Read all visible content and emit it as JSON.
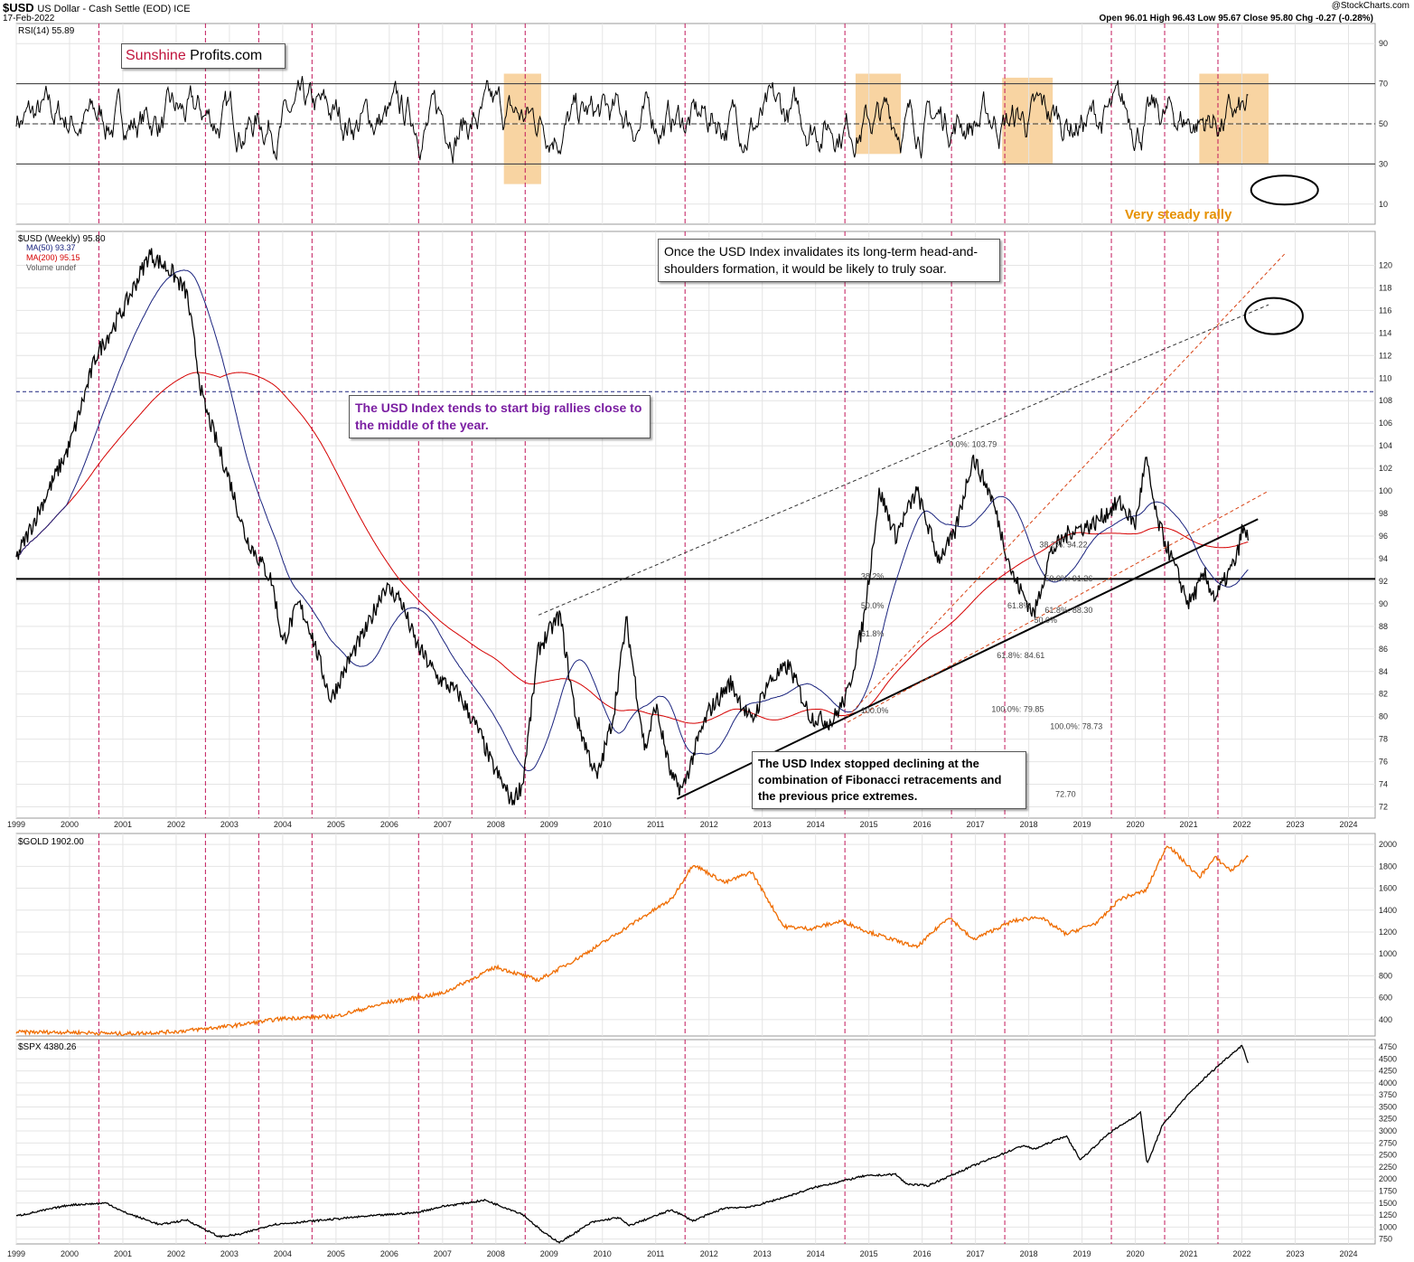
{
  "header": {
    "symbol": "$USD",
    "name": "US Dollar - Cash Settle (EOD) ICE",
    "date": "17-Feb-2022",
    "source": "@StockCharts.com",
    "ohlc": "Open 96.01  High 96.43  Low 95.67  Close 95.80  Chg -0.27 (-0.28%)"
  },
  "brand": {
    "part1": "Sunshine",
    "part2": "Profits.com",
    "color1": "#c0143c"
  },
  "annotations": {
    "rsi_rally": "Very steady rally",
    "invalidation": "Once the USD Index invalidates its long-term head-and-shoulders formation, it would be likely to truly soar.",
    "seasonality": "The USD Index tends to start big rallies close to the middle of the year.",
    "fibonacci": "The USD Index stopped declining at the combination of Fibonacci retracements and the previous price extremes."
  },
  "fib_labels": [
    "0.0%: 103.79",
    "38.2%: 94.22",
    "50.0%: 91.26",
    "61.8%: 88.30",
    "61.8%: 84.61",
    "100.0%: 79.85",
    "100.0%: 78.73",
    "72.70",
    "38.2%",
    "50.0%",
    "61.8%",
    "100.0%",
    "61.8%",
    "50.0%"
  ],
  "chart_data": [
    {
      "type": "line",
      "title": "RSI(14) 55.89",
      "series": [
        {
          "name": "RSI(14)",
          "last": 55.89
        }
      ],
      "ylim": [
        0,
        100
      ],
      "ticks": [
        90,
        70,
        50,
        30,
        10
      ],
      "reference_lines": [
        70,
        50,
        30
      ]
    },
    {
      "type": "line",
      "title": "$USD (Weekly) 95.80",
      "legend": [
        "$USD (Weekly) 95.80",
        "MA(50) 93.37",
        "MA(200) 95.15",
        "Volume undef"
      ],
      "series": [
        {
          "name": "$USD (Weekly)",
          "last": 95.8,
          "color": "#000000"
        },
        {
          "name": "MA(50)",
          "last": 93.37,
          "color": "#1a237e"
        },
        {
          "name": "MA(200)",
          "last": 95.15,
          "color": "#d50000"
        }
      ],
      "ylim": [
        71,
        123
      ],
      "ticks": [
        72,
        74,
        76,
        78,
        80,
        82,
        84,
        86,
        88,
        90,
        92,
        94,
        96,
        98,
        100,
        102,
        104,
        106,
        108,
        110,
        112,
        114,
        116,
        118,
        120
      ],
      "key_points": [
        [
          1999.0,
          94.0
        ],
        [
          1999.5,
          99.0
        ],
        [
          2000.0,
          104.0
        ],
        [
          2000.5,
          112.0
        ],
        [
          2001.0,
          116.0
        ],
        [
          2001.5,
          121.0
        ],
        [
          2001.9,
          119.5
        ],
        [
          2002.2,
          117.5
        ],
        [
          2002.5,
          108.0
        ],
        [
          2003.0,
          101.0
        ],
        [
          2003.3,
          96.0
        ],
        [
          2003.8,
          92.0
        ],
        [
          2004.0,
          86.5
        ],
        [
          2004.3,
          90.0
        ],
        [
          2004.5,
          88.0
        ],
        [
          2004.9,
          81.5
        ],
        [
          2005.3,
          85.5
        ],
        [
          2005.6,
          88.0
        ],
        [
          2005.9,
          91.5
        ],
        [
          2006.2,
          90.5
        ],
        [
          2006.5,
          86.5
        ],
        [
          2006.9,
          83.5
        ],
        [
          2007.3,
          82.0
        ],
        [
          2007.7,
          78.5
        ],
        [
          2007.9,
          76.0
        ],
        [
          2008.3,
          72.5
        ],
        [
          2008.5,
          74.0
        ],
        [
          2008.8,
          86.0
        ],
        [
          2009.0,
          87.5
        ],
        [
          2009.2,
          89.0
        ],
        [
          2009.5,
          80.0
        ],
        [
          2009.9,
          74.5
        ],
        [
          2010.2,
          80.0
        ],
        [
          2010.45,
          88.5
        ],
        [
          2010.8,
          77.0
        ],
        [
          2011.0,
          81.0
        ],
        [
          2011.3,
          74.5
        ],
        [
          2011.5,
          73.5
        ],
        [
          2011.8,
          78.0
        ],
        [
          2012.0,
          80.5
        ],
        [
          2012.4,
          83.0
        ],
        [
          2012.8,
          79.5
        ],
        [
          2013.1,
          83.0
        ],
        [
          2013.5,
          84.5
        ],
        [
          2013.9,
          80.0
        ],
        [
          2014.3,
          79.5
        ],
        [
          2014.6,
          82.0
        ],
        [
          2014.9,
          88.5
        ],
        [
          2015.2,
          100.0
        ],
        [
          2015.5,
          96.0
        ],
        [
          2015.9,
          100.0
        ],
        [
          2016.3,
          94.0
        ],
        [
          2016.6,
          96.0
        ],
        [
          2016.95,
          103.0
        ],
        [
          2017.3,
          99.5
        ],
        [
          2017.7,
          92.5
        ],
        [
          2018.1,
          89.0
        ],
        [
          2018.4,
          94.5
        ],
        [
          2018.8,
          96.5
        ],
        [
          2019.2,
          97.0
        ],
        [
          2019.7,
          99.0
        ],
        [
          2020.0,
          97.0
        ],
        [
          2020.2,
          102.8
        ],
        [
          2020.4,
          97.5
        ],
        [
          2020.8,
          92.5
        ],
        [
          2021.0,
          90.0
        ],
        [
          2021.3,
          92.5
        ],
        [
          2021.5,
          90.5
        ],
        [
          2021.9,
          94.0
        ],
        [
          2022.0,
          96.5
        ],
        [
          2022.13,
          95.8
        ]
      ]
    },
    {
      "type": "line",
      "title": "$GOLD 1902.00",
      "series": [
        {
          "name": "$GOLD",
          "last": 1902.0,
          "color": "#ef6c00"
        }
      ],
      "ylim": [
        250,
        2100
      ],
      "ticks": [
        400,
        600,
        800,
        1000,
        1200,
        1400,
        1600,
        1800,
        2000
      ],
      "key_points": [
        [
          1999.0,
          285
        ],
        [
          2000.0,
          285
        ],
        [
          2001.0,
          270
        ],
        [
          2002.0,
          290
        ],
        [
          2003.0,
          340
        ],
        [
          2004.0,
          410
        ],
        [
          2005.0,
          430
        ],
        [
          2006.0,
          560
        ],
        [
          2007.0,
          640
        ],
        [
          2008.0,
          880
        ],
        [
          2008.8,
          760
        ],
        [
          2009.5,
          950
        ],
        [
          2010.0,
          1100
        ],
        [
          2010.8,
          1350
        ],
        [
          2011.3,
          1500
        ],
        [
          2011.7,
          1820
        ],
        [
          2012.3,
          1650
        ],
        [
          2012.8,
          1750
        ],
        [
          2013.4,
          1250
        ],
        [
          2013.9,
          1230
        ],
        [
          2014.5,
          1300
        ],
        [
          2015.0,
          1200
        ],
        [
          2015.9,
          1060
        ],
        [
          2016.5,
          1340
        ],
        [
          2016.95,
          1130
        ],
        [
          2017.7,
          1300
        ],
        [
          2018.2,
          1340
        ],
        [
          2018.7,
          1180
        ],
        [
          2019.3,
          1290
        ],
        [
          2019.7,
          1500
        ],
        [
          2020.2,
          1580
        ],
        [
          2020.6,
          2000
        ],
        [
          2021.2,
          1700
        ],
        [
          2021.5,
          1880
        ],
        [
          2021.8,
          1760
        ],
        [
          2022.13,
          1902
        ]
      ]
    },
    {
      "type": "line",
      "title": "$SPX 4380.26",
      "series": [
        {
          "name": "$SPX",
          "last": 4380.26,
          "color": "#000000"
        }
      ],
      "ylim": [
        650,
        4900
      ],
      "ticks": [
        750,
        1000,
        1250,
        1500,
        1750,
        2000,
        2250,
        2500,
        2750,
        3000,
        3250,
        3500,
        3750,
        4000,
        4250,
        4500,
        4750
      ],
      "key_points": [
        [
          1999.0,
          1230
        ],
        [
          2000.0,
          1460
        ],
        [
          2000.7,
          1500
        ],
        [
          2001.0,
          1320
        ],
        [
          2001.7,
          1050
        ],
        [
          2002.2,
          1150
        ],
        [
          2002.8,
          800
        ],
        [
          2003.2,
          850
        ],
        [
          2003.8,
          1050
        ],
        [
          2004.5,
          1120
        ],
        [
          2005.5,
          1220
        ],
        [
          2006.5,
          1300
        ],
        [
          2007.0,
          1430
        ],
        [
          2007.8,
          1560
        ],
        [
          2008.5,
          1270
        ],
        [
          2008.9,
          880
        ],
        [
          2009.2,
          680
        ],
        [
          2009.8,
          1100
        ],
        [
          2010.3,
          1200
        ],
        [
          2010.5,
          1030
        ],
        [
          2011.3,
          1360
        ],
        [
          2011.7,
          1130
        ],
        [
          2012.3,
          1400
        ],
        [
          2012.8,
          1420
        ],
        [
          2013.5,
          1650
        ],
        [
          2014.0,
          1830
        ],
        [
          2014.9,
          2060
        ],
        [
          2015.5,
          2100
        ],
        [
          2015.7,
          1900
        ],
        [
          2016.1,
          1860
        ],
        [
          2016.9,
          2250
        ],
        [
          2017.9,
          2700
        ],
        [
          2018.1,
          2620
        ],
        [
          2018.7,
          2900
        ],
        [
          2018.97,
          2400
        ],
        [
          2019.5,
          2950
        ],
        [
          2020.1,
          3380
        ],
        [
          2020.22,
          2300
        ],
        [
          2020.5,
          3100
        ],
        [
          2020.9,
          3650
        ],
        [
          2021.3,
          4100
        ],
        [
          2021.7,
          4500
        ],
        [
          2022.0,
          4780
        ],
        [
          2022.13,
          4380
        ]
      ]
    }
  ],
  "x_axis": {
    "ticks": [
      "1999",
      "2000",
      "2001",
      "2002",
      "2003",
      "2004",
      "2005",
      "2006",
      "2007",
      "2008",
      "2009",
      "2010",
      "2011",
      "2012",
      "2013",
      "2014",
      "2015",
      "2016",
      "2017",
      "2018",
      "2019",
      "2020",
      "2021",
      "2022",
      "2023",
      "2024"
    ]
  },
  "colors": {
    "usd": "#000000",
    "ma50": "#1a237e",
    "ma200": "#d50000",
    "gold": "#ef6c00",
    "spx": "#000000",
    "highlight": "#f5c27a",
    "mid_year": "#c2185b"
  }
}
